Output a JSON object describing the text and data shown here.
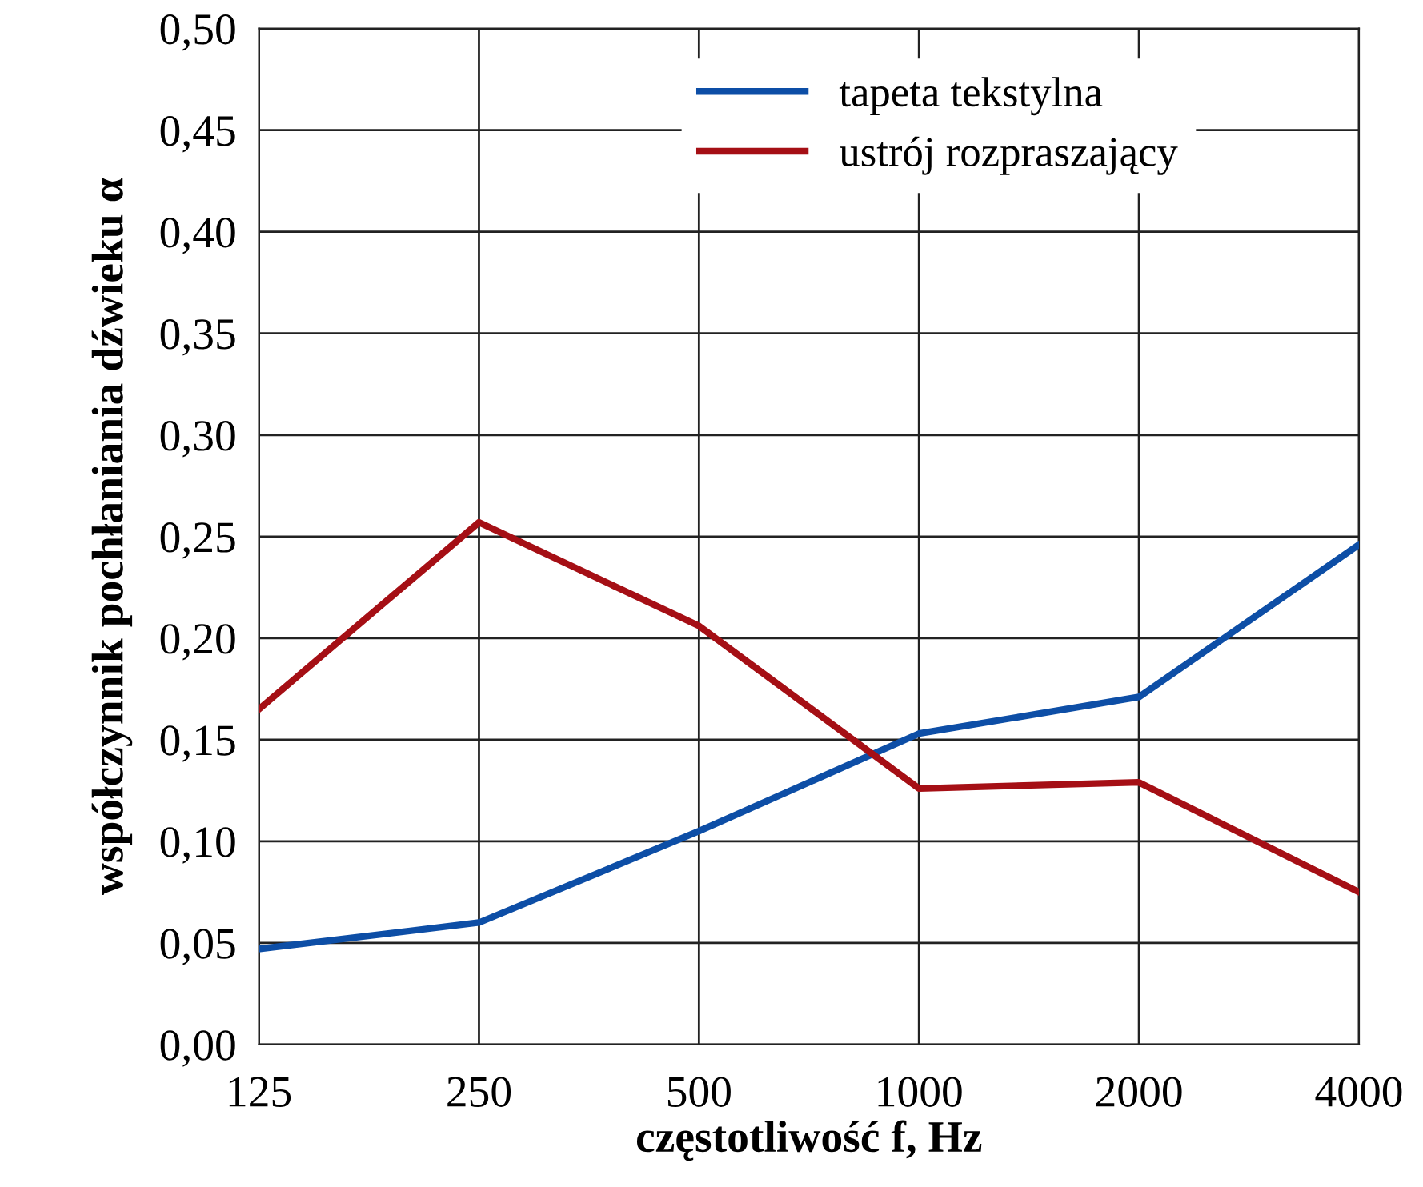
{
  "chart_data": {
    "type": "line",
    "xlabel": "częstotliwość f, Hz",
    "ylabel": "współczynnik pochłaniania dźwieku α",
    "categories": [
      "125",
      "250",
      "500",
      "1000",
      "2000",
      "4000"
    ],
    "series": [
      {
        "name": "tapeta tekstylna",
        "color": "#0d4ea6",
        "values": [
          0.047,
          0.06,
          0.105,
          0.153,
          0.171,
          0.246
        ]
      },
      {
        "name": "ustrój rozpraszający",
        "color": "#a50f15",
        "values": [
          0.165,
          0.257,
          0.206,
          0.126,
          0.129,
          0.075
        ]
      }
    ],
    "ylim": [
      0,
      0.5
    ],
    "yticks": [
      {
        "value": 0,
        "label": "0,00"
      },
      {
        "value": 0.05,
        "label": "0,05"
      },
      {
        "value": 0.1,
        "label": "0,10"
      },
      {
        "value": 0.15,
        "label": "0,15"
      },
      {
        "value": 0.2,
        "label": "0,20"
      },
      {
        "value": 0.25,
        "label": "0,25"
      },
      {
        "value": 0.3,
        "label": "0,30"
      },
      {
        "value": 0.35,
        "label": "0,35"
      },
      {
        "value": 0.4,
        "label": "0,40"
      },
      {
        "value": 0.45,
        "label": "0,45"
      },
      {
        "value": 0.5,
        "label": "0,50"
      }
    ],
    "grid": true,
    "legend": "top right",
    "marker": "none",
    "line_style": "solid"
  }
}
